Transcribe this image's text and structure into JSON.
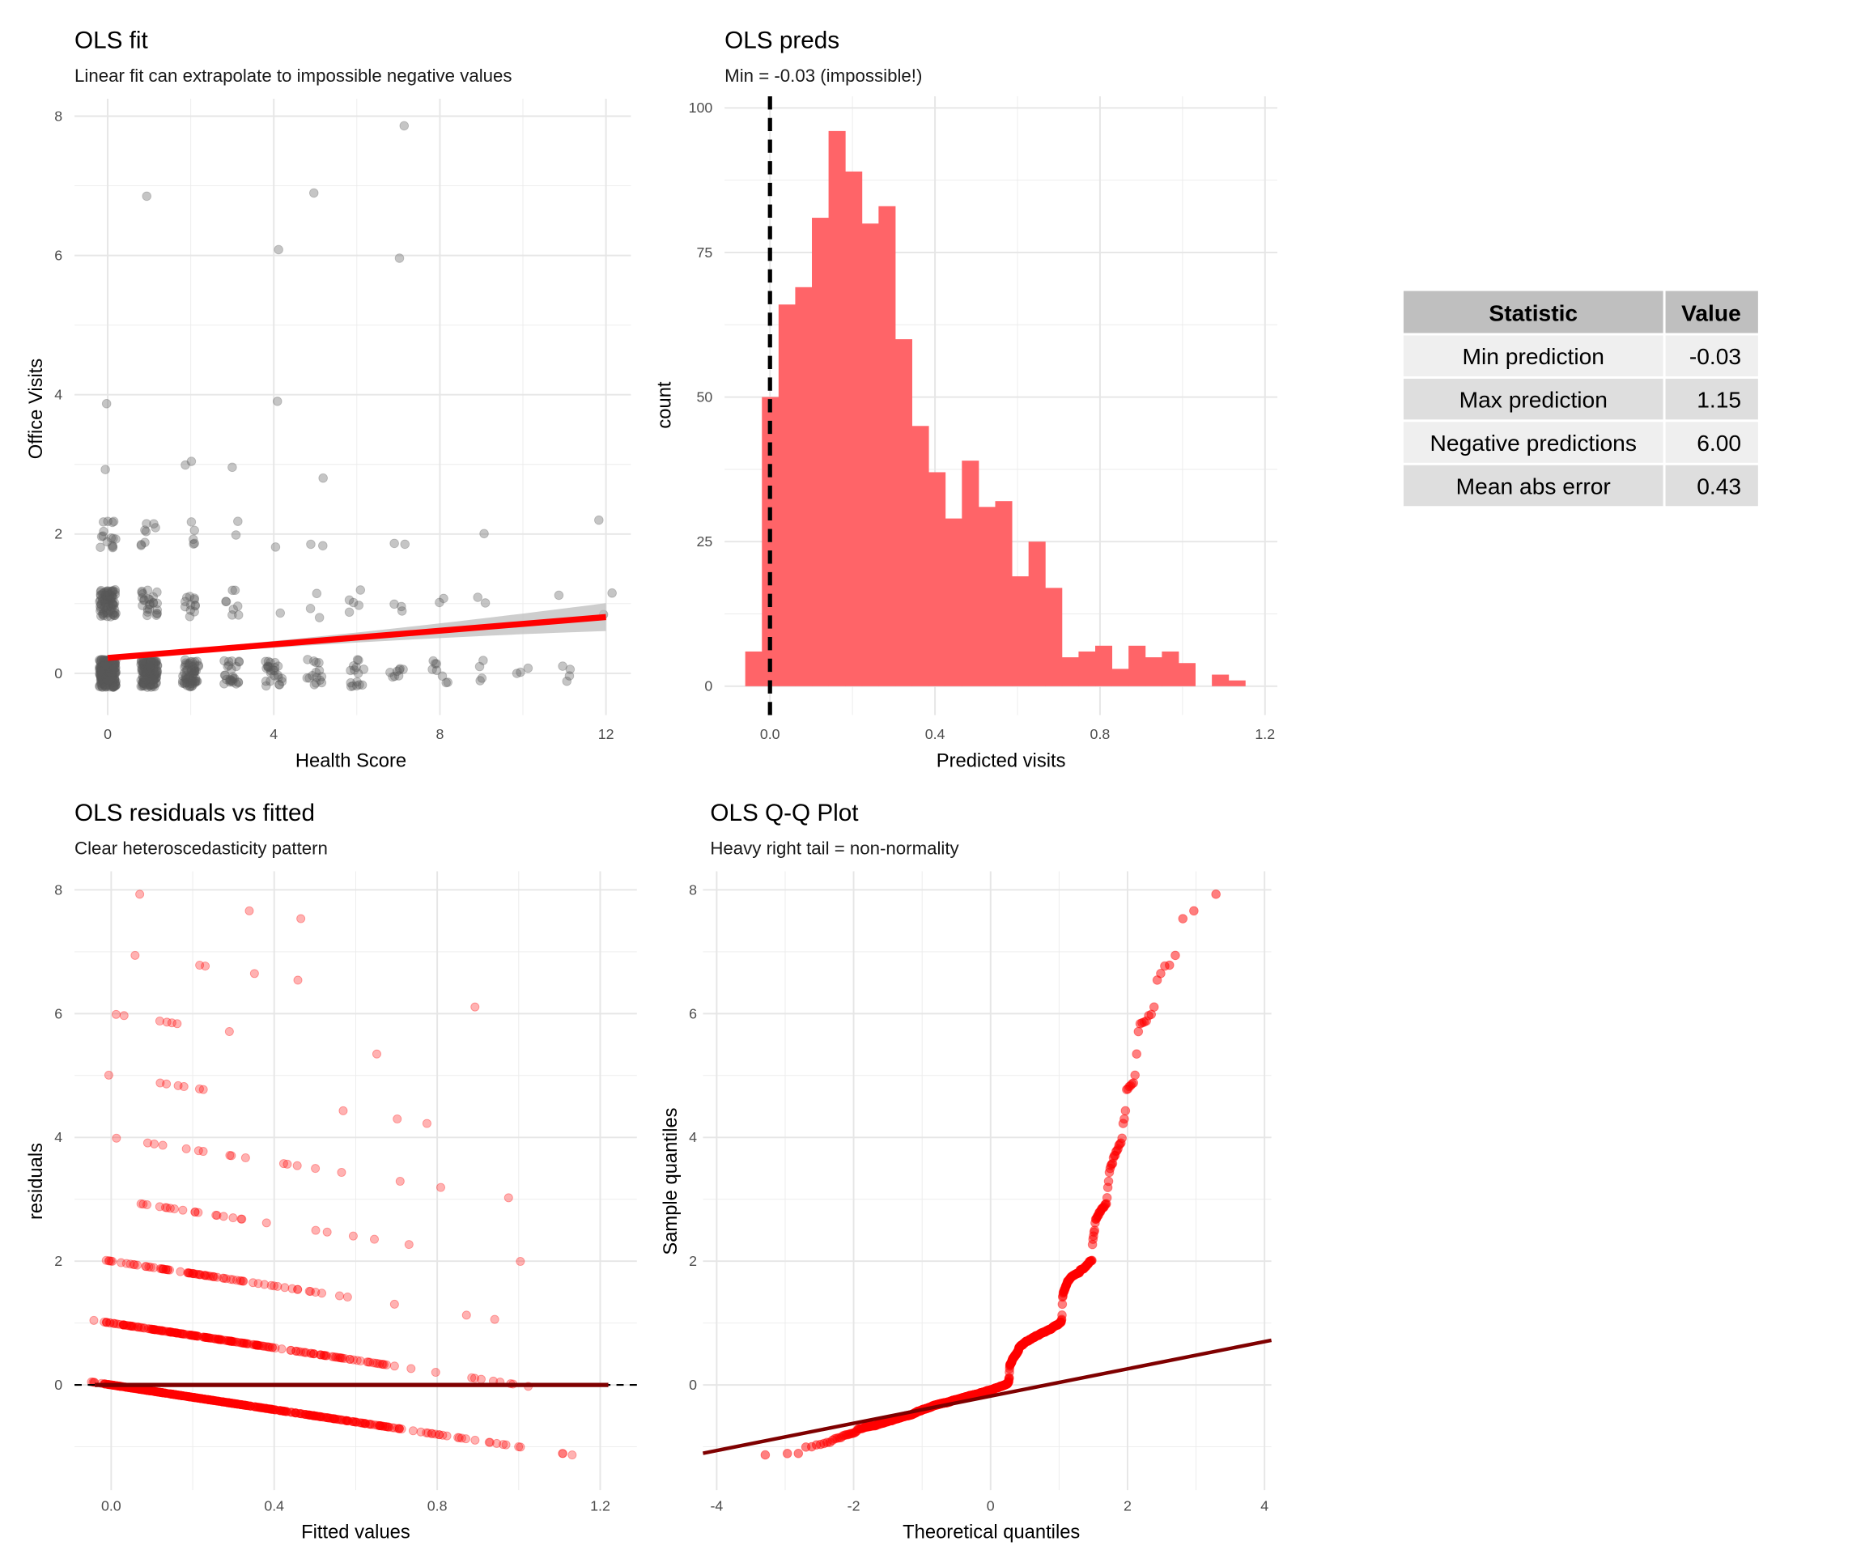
{
  "chart_data": [
    {
      "type": "scatter",
      "title": "OLS fit",
      "subtitle": "Linear fit can extrapolate to impossible negative values",
      "xlabel": "Health Score",
      "ylabel": "Office Visits",
      "xlim": [
        -0.8,
        12.6
      ],
      "ylim": [
        -0.6,
        8.25
      ],
      "x_ticks": [
        0,
        4,
        8,
        12
      ],
      "y_ticks": [
        0,
        2,
        4,
        6,
        8
      ],
      "point_color": "#595959",
      "jitter": 0.2,
      "observations": [
        {
          "health": 0,
          "visits": 0,
          "n": 250
        },
        {
          "health": 0,
          "visits": 1,
          "n": 80
        },
        {
          "health": 0,
          "visits": 2,
          "n": 15
        },
        {
          "health": 1,
          "visits": 0,
          "n": 150
        },
        {
          "health": 1,
          "visits": 1,
          "n": 25
        },
        {
          "health": 1,
          "visits": 2,
          "n": 8
        },
        {
          "health": 2,
          "visits": 0,
          "n": 60
        },
        {
          "health": 2,
          "visits": 1,
          "n": 12
        },
        {
          "health": 2,
          "visits": 2,
          "n": 5
        },
        {
          "health": 3,
          "visits": 0,
          "n": 25
        },
        {
          "health": 3,
          "visits": 1,
          "n": 8
        },
        {
          "health": 3,
          "visits": 2,
          "n": 2
        },
        {
          "health": 4,
          "visits": 0,
          "n": 25
        },
        {
          "health": 4,
          "visits": 1,
          "n": 1
        },
        {
          "health": 4,
          "visits": 2,
          "n": 1
        },
        {
          "health": 5,
          "visits": 0,
          "n": 15
        },
        {
          "health": 5,
          "visits": 1,
          "n": 3
        },
        {
          "health": 5,
          "visits": 2,
          "n": 2
        },
        {
          "health": 6,
          "visits": 0,
          "n": 15
        },
        {
          "health": 6,
          "visits": 1,
          "n": 5
        },
        {
          "health": 7,
          "visits": 0,
          "n": 8
        },
        {
          "health": 7,
          "visits": 1,
          "n": 3
        },
        {
          "health": 7,
          "visits": 2,
          "n": 2
        },
        {
          "health": 8,
          "visits": 0,
          "n": 8
        },
        {
          "health": 8,
          "visits": 1,
          "n": 2
        },
        {
          "health": 9,
          "visits": 0,
          "n": 4
        },
        {
          "health": 9,
          "visits": 1,
          "n": 2
        },
        {
          "health": 9,
          "visits": 2,
          "n": 1
        },
        {
          "health": 10,
          "visits": 0,
          "n": 3
        },
        {
          "health": 11,
          "visits": 0,
          "n": 4
        },
        {
          "health": 11,
          "visits": 1,
          "n": 1
        },
        {
          "health": 12,
          "visits": 1,
          "n": 2
        },
        {
          "health": 12,
          "visits": 2,
          "n": 1
        },
        {
          "health": 0,
          "visits": 4,
          "n": 1
        },
        {
          "health": 0,
          "visits": 3,
          "n": 1
        },
        {
          "health": 1,
          "visits": 7,
          "n": 1
        },
        {
          "health": 2,
          "visits": 3,
          "n": 2
        },
        {
          "health": 3,
          "visits": 3,
          "n": 1
        },
        {
          "health": 4,
          "visits": 4,
          "n": 1
        },
        {
          "health": 4,
          "visits": 6,
          "n": 1
        },
        {
          "health": 5,
          "visits": 7,
          "n": 1
        },
        {
          "health": 5,
          "visits": 3,
          "n": 1
        },
        {
          "health": 7,
          "visits": 8,
          "n": 1
        },
        {
          "health": 7,
          "visits": 6,
          "n": 1
        }
      ],
      "fit": {
        "intercept": 0.22,
        "slope": 0.049,
        "x_range": [
          0,
          12
        ],
        "se_at_min": 0.03,
        "se_at_max": 0.2,
        "color": "#ff0000",
        "ribbon_color": "#bdbdbd"
      }
    },
    {
      "type": "bar",
      "title": "OLS preds",
      "subtitle": "Min = -0.03 (impossible!)",
      "xlabel": "Predicted visits",
      "ylabel": "count",
      "xlim": [
        -0.11,
        1.23
      ],
      "ylim": [
        -5,
        102
      ],
      "x_ticks": [
        "0.0",
        "0.4",
        "0.8",
        "1.2"
      ],
      "y_ticks": [
        0,
        25,
        50,
        75,
        100
      ],
      "bin_start": -0.06,
      "bin_width": 0.0404,
      "counts": [
        6,
        50,
        66,
        69,
        81,
        96,
        89,
        80,
        83,
        60,
        45,
        37,
        29,
        39,
        31,
        32,
        19,
        25,
        17,
        5,
        6,
        7,
        3,
        7,
        5,
        6,
        4,
        0,
        2,
        1
      ],
      "bar_color": "#ff6468",
      "vline": {
        "x": 0,
        "style": "dashed",
        "color": "#000000"
      }
    },
    {
      "type": "scatter",
      "title": "OLS residuals vs fitted",
      "subtitle": "Clear heteroscedasticity pattern",
      "xlabel": "Fitted values",
      "ylabel": "residuals",
      "xlim": [
        -0.09,
        1.29
      ],
      "ylim": [
        -1.7,
        8.3
      ],
      "x_ticks": [
        "0.0",
        "0.4",
        "0.8",
        "1.2"
      ],
      "y_ticks": [
        0,
        2,
        4,
        6,
        8
      ],
      "residual_bands": [
        {
          "visits": 0,
          "n": 600
        },
        {
          "visits": 1,
          "n": 250
        },
        {
          "visits": 2,
          "n": 80
        },
        {
          "visits": 3,
          "n": 25
        },
        {
          "visits": 4,
          "n": 18
        },
        {
          "visits": 5,
          "n": 10
        },
        {
          "visits": 6,
          "n": 8
        },
        {
          "visits": 7,
          "n": 6
        },
        {
          "visits": 8,
          "n": 3
        }
      ],
      "point_color": "#ff0000",
      "hline": {
        "y": 0,
        "style": "dashed",
        "color": "#000000"
      },
      "smooth": {
        "y": 0,
        "x_range": [
          -0.04,
          1.22
        ],
        "color": "#7f0000"
      }
    },
    {
      "type": "scatter",
      "title": "OLS Q-Q Plot",
      "subtitle": "Heavy right tail = non-normality",
      "xlabel": "Theoretical quantiles",
      "ylabel": "Sample quantiles",
      "xlim": [
        -4.2,
        4.1
      ],
      "ylim": [
        -1.7,
        8.3
      ],
      "x_ticks": [
        -4,
        -2,
        0,
        2,
        4
      ],
      "y_ticks": [
        0,
        2,
        4,
        6,
        8
      ],
      "point_color": "#ff0000",
      "qq_line": {
        "intercept": -0.18,
        "slope": 0.22,
        "color": "#7f0000"
      }
    }
  ],
  "stats_table": {
    "headers": [
      "Statistic",
      "Value"
    ],
    "rows": [
      [
        "Min prediction",
        "-0.03"
      ],
      [
        "Max prediction",
        "1.15"
      ],
      [
        "Negative predictions",
        "6.00"
      ],
      [
        "Mean abs error",
        "0.43"
      ]
    ],
    "colors": {
      "header": "#bfbfbf",
      "row_odd": "#efefef",
      "row_even": "#dedede"
    }
  }
}
